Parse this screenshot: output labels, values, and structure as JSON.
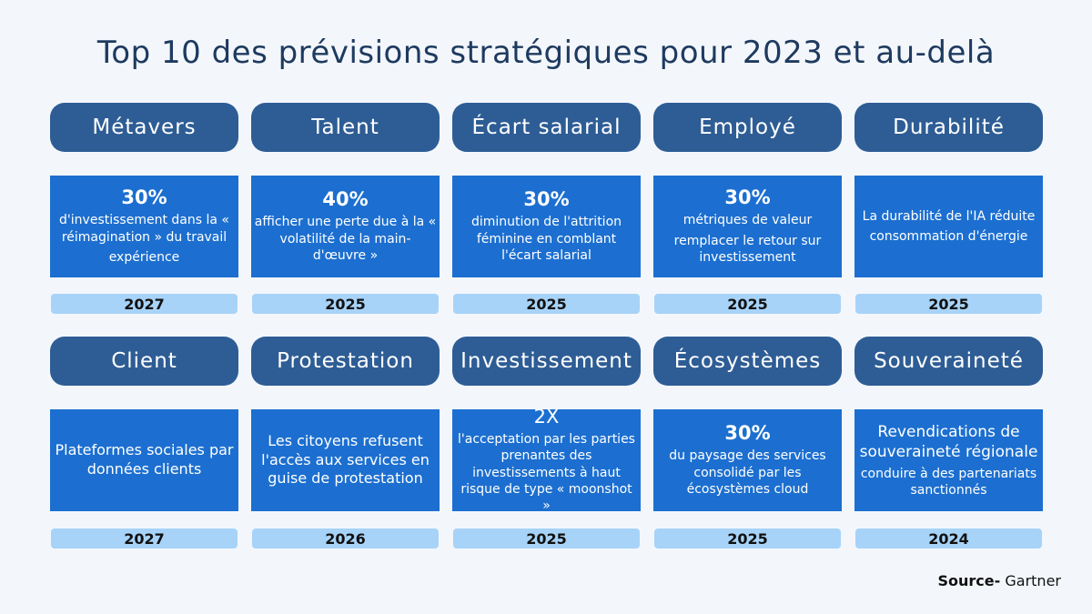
{
  "title": "Top 10 des prévisions stratégiques pour 2023 et au-delà",
  "cards": [
    {
      "label": "Métavers",
      "stat": "30%",
      "lines": [
        "d'investissement dans la « réimagination » du travail",
        "expérience"
      ],
      "year": "2027"
    },
    {
      "label": "Talent",
      "stat": "40%",
      "lines": [
        "afficher une perte due à la « volatilité de la main-d'œuvre »"
      ],
      "year": "2025"
    },
    {
      "label": "Écart salarial",
      "stat": "30%",
      "lines": [
        "diminution de l'attrition féminine en comblant l'écart salarial"
      ],
      "year": "2025"
    },
    {
      "label": "Employé",
      "stat": "30%",
      "lines": [
        "métriques de valeur",
        "remplacer le retour sur investissement"
      ],
      "year": "2025"
    },
    {
      "label": "Durabilité",
      "lines": [
        "La durabilité de l'IA réduite",
        "consommation d'énergie"
      ],
      "year": "2025"
    },
    {
      "label": "Client",
      "lines": [
        "Plateformes sociales par données clients"
      ],
      "year": "2027"
    },
    {
      "label": "Protestation",
      "lines": [
        "Les citoyens refusent l'accès aux services en guise de protestation"
      ],
      "year": "2026"
    },
    {
      "label": "Investissement",
      "stat": "2X",
      "lines": [
        "l'acceptation par les parties prenantes des investissements à haut risque de type « moonshot »"
      ],
      "year": "2025"
    },
    {
      "label": "Écosystèmes",
      "stat": "30%",
      "lines": [
        "du paysage des services consolidé par les écosystèmes cloud"
      ],
      "year": "2025"
    },
    {
      "label": "Souveraineté",
      "lines": [
        "Revendications de souveraineté régionale",
        "conduire à des partenariats sanctionnés"
      ],
      "year": "2024"
    }
  ],
  "source": {
    "label": "Source-",
    "name": "Gartner"
  }
}
